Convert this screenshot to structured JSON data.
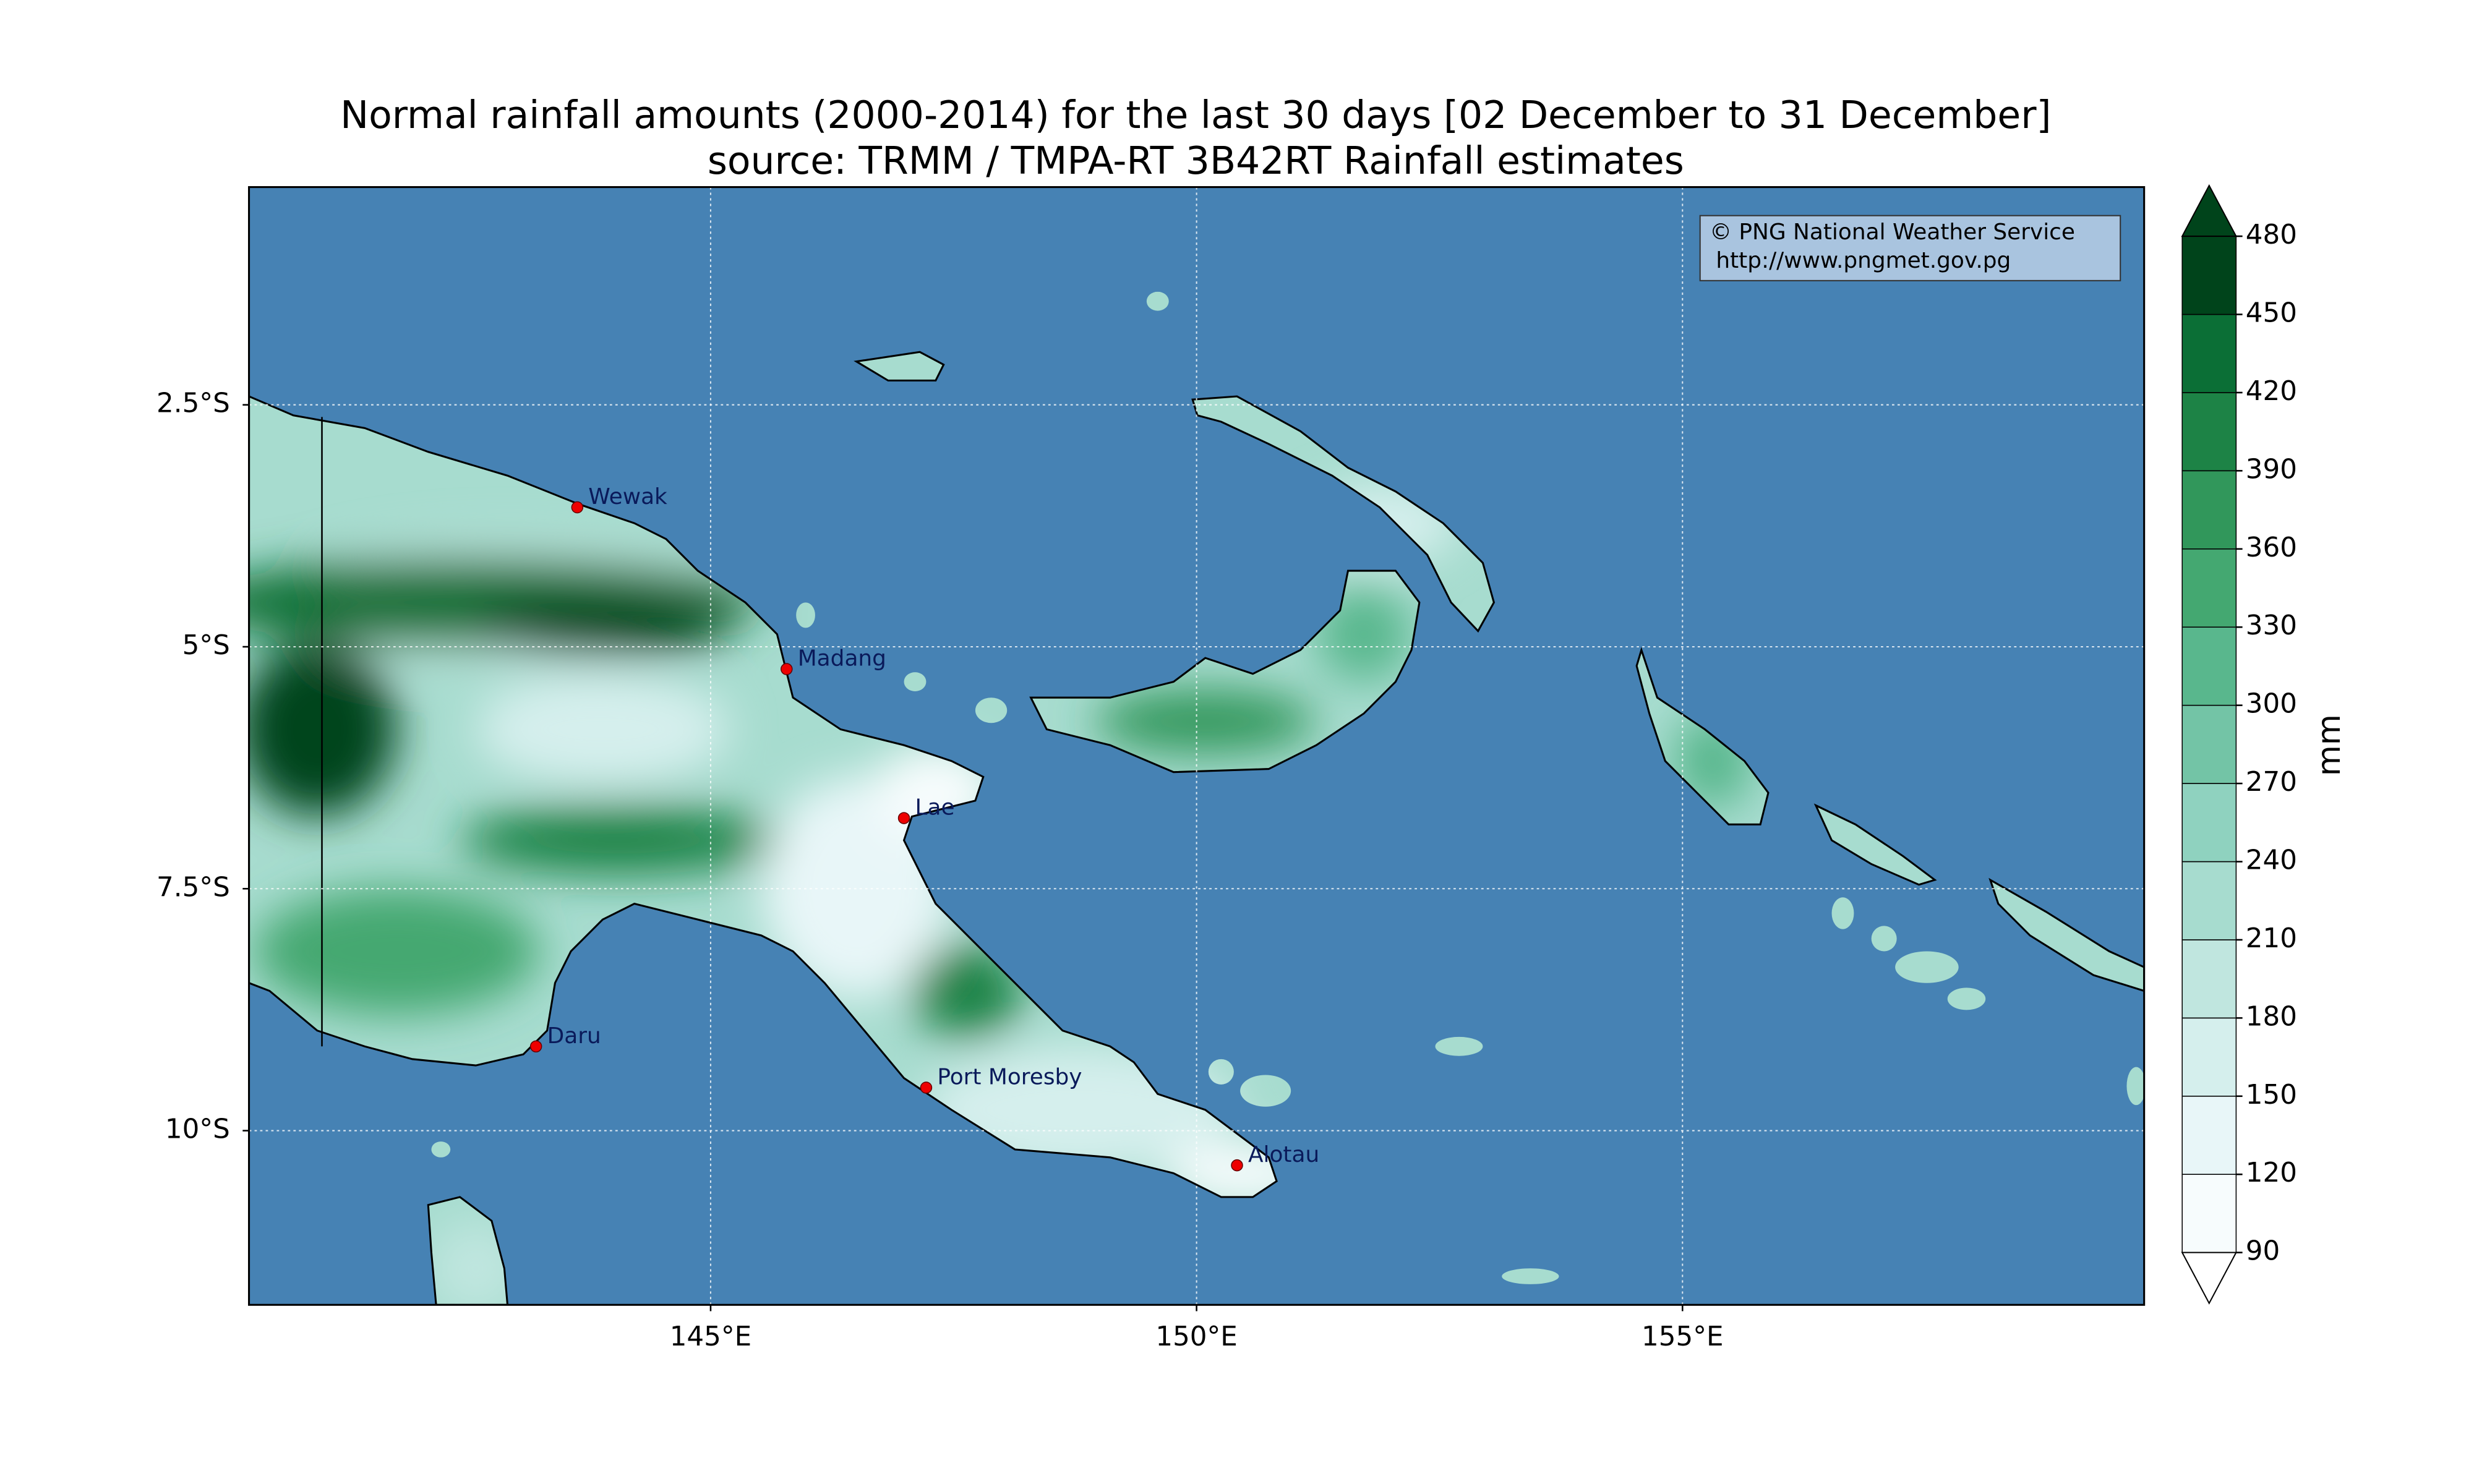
{
  "title": "Normal rainfall amounts (2000-2014) for the last 30 days [02 December to 31 December]",
  "subtitle": "source: TRMM / TMPA-RT 3B42RT Rainfall estimates",
  "credit": [
    "© PNG National Weather Service",
    "http://www.pngmet.gov.pg"
  ],
  "map": {
    "lonlim": [
      140.25,
      159.75
    ],
    "latlim": [
      -11.8,
      -0.25
    ],
    "lon_ticks": [
      {
        "value": 145,
        "label": "145°E"
      },
      {
        "value": 150,
        "label": "150°E"
      },
      {
        "value": 155,
        "label": "155°E"
      }
    ],
    "lat_ticks": [
      {
        "value": -2.5,
        "label": "2.5°S"
      },
      {
        "value": -5,
        "label": "5°S"
      },
      {
        "value": -7.5,
        "label": "7.5°S"
      },
      {
        "value": -10,
        "label": "10°S"
      }
    ],
    "grid": true,
    "places": [
      "Wewak",
      "Madang",
      "Lae",
      "Daru",
      "Port Moresby",
      "Alotau"
    ]
  },
  "colorbar": {
    "label": "mm",
    "lim": [
      90,
      480
    ],
    "ticks": [
      90,
      120,
      150,
      180,
      210,
      240,
      270,
      300,
      330,
      360,
      390,
      420,
      450,
      480
    ],
    "colors": [
      "#f7fcfd",
      "#e8f6f8",
      "#d5efed",
      "#c0e6df",
      "#a7dccf",
      "#8fd2bf",
      "#73c4a6",
      "#59b78d",
      "#44a871",
      "#31975b",
      "#1d8346",
      "#0b6f36",
      "#00441b"
    ]
  }
}
